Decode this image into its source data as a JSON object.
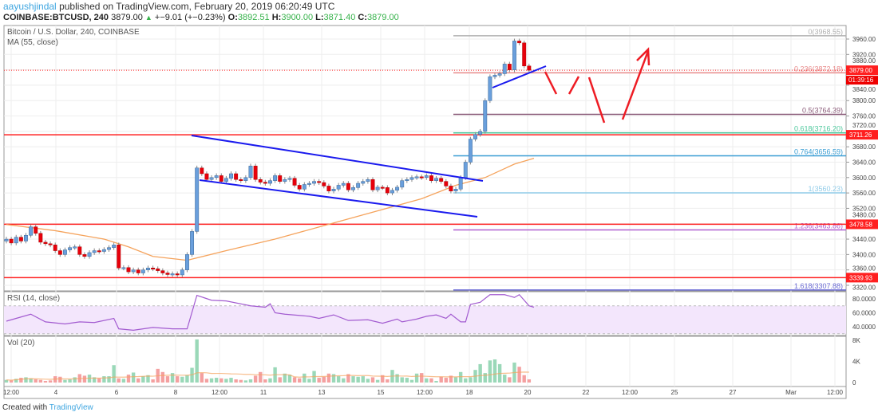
{
  "header": {
    "author": "aayushjindal",
    "published": "published on TradingView.com, February 20, 2019 06:20:49 UTC",
    "symbol": "COINBASE:BTCUSD, 240",
    "last": "3879.00",
    "change": "+−9.01 (+−0.23%)",
    "o_label": "O:",
    "o": "3892.51",
    "h_label": "H:",
    "h": "3900.00",
    "l_label": "L:",
    "l": "3871.40",
    "c_label": "C:",
    "c": "3879.00"
  },
  "legend": {
    "title": "Bitcoin / U.S. Dollar, 240, COINBASE",
    "ma": "MA (55, close)",
    "rsi": "RSI (14, close)",
    "vol": "Vol (20)"
  },
  "footer": {
    "created": "Created with",
    "brand": "TradingView"
  },
  "colors": {
    "up": "#6a9fdc",
    "down": "#e8000b",
    "ma": "#f5a35c",
    "rsi": "#a25bd0",
    "rsi_band": "#f3e6fc",
    "vol_up": "#9ad8b8",
    "vol_down": "#f4a0a0",
    "support": "#ff2020",
    "channel": "#1a1aee",
    "arrow": "#ee1c24"
  },
  "chart_data": {
    "type": "candlestick",
    "price_ticks": [
      "3960.00",
      "3920.00",
      "3880.00",
      "3840.00",
      "3800.00",
      "3760.00",
      "3720.00",
      "3680.00",
      "3640.00",
      "3600.00",
      "3560.00",
      "3520.00",
      "3480.00",
      "3440.00",
      "3400.00",
      "3360.00",
      "3320.00"
    ],
    "price_ylim": [
      3300,
      3985
    ],
    "time_ticks": [
      "12:00",
      "4",
      "6",
      "8",
      "12:00",
      "11",
      "13",
      "15",
      "12:00",
      "18",
      "20",
      "22",
      "12:00",
      "25",
      "27",
      "Mar",
      "12:00"
    ],
    "closes": [
      3440,
      3430,
      3445,
      3435,
      3450,
      3472,
      3455,
      3432,
      3428,
      3425,
      3410,
      3400,
      3412,
      3418,
      3420,
      3400,
      3395,
      3405,
      3410,
      3408,
      3413,
      3418,
      3425,
      3365,
      3366,
      3355,
      3360,
      3352,
      3360,
      3365,
      3363,
      3358,
      3352,
      3348,
      3350,
      3347,
      3360,
      3400,
      3460,
      3625,
      3610,
      3595,
      3600,
      3605,
      3590,
      3598,
      3610,
      3595,
      3592,
      3600,
      3630,
      3595,
      3588,
      3585,
      3592,
      3605,
      3590,
      3595,
      3598,
      3580,
      3570,
      3582,
      3585,
      3590,
      3587,
      3578,
      3565,
      3570,
      3580,
      3585,
      3568,
      3574,
      3585,
      3590,
      3595,
      3568,
      3575,
      3574,
      3560,
      3567,
      3575,
      3592,
      3595,
      3600,
      3602,
      3600,
      3605,
      3592,
      3598,
      3590,
      3578,
      3565,
      3570,
      3600,
      3640,
      3700,
      3712,
      3720,
      3800,
      3862,
      3866,
      3870,
      3895,
      3880,
      3955,
      3950,
      3890,
      3879
    ],
    "first_open": 3435,
    "ma55": [
      [
        0,
        3478
      ],
      [
        10,
        3462
      ],
      [
        20,
        3440
      ],
      [
        25,
        3420
      ],
      [
        30,
        3395
      ],
      [
        37,
        3385
      ],
      [
        45,
        3410
      ],
      [
        55,
        3440
      ],
      [
        65,
        3475
      ],
      [
        75,
        3510
      ],
      [
        85,
        3545
      ],
      [
        92,
        3580
      ],
      [
        98,
        3600
      ],
      [
        104,
        3635
      ],
      [
        108,
        3650
      ]
    ],
    "current_price": {
      "value": "3879.00",
      "countdown": "01:39:16"
    },
    "horizontal_levels": [
      "3711.26",
      "3478.58",
      "3339.93"
    ],
    "fib_levels": [
      {
        "label": "0(3968.55)",
        "value": 3968.55,
        "color": "#b0b0b0"
      },
      {
        "label": "0.236(3872.18)",
        "value": 3872.18,
        "color": "#e88a8a"
      },
      {
        "label": "0.5(3764.39)",
        "value": 3764.39,
        "color": "#8a5a78"
      },
      {
        "label": "0.618(3716.20)",
        "value": 3716.2,
        "color": "#4cc89c"
      },
      {
        "label": "0.764(3656.59)",
        "value": 3656.59,
        "color": "#3a9ed4"
      },
      {
        "label": "1(3560.23)",
        "value": 3560.23,
        "color": "#8fcbe8"
      },
      {
        "label": "1.236(3463.86)",
        "value": 3463.86,
        "color": "#b060d0"
      },
      {
        "label": "1.618(3307.88)",
        "value": 3307.88,
        "color": "#6a6ad4"
      }
    ],
    "rsi": {
      "ticks": [
        "80.0000",
        "60.0000",
        "40.0000"
      ],
      "band": [
        30,
        70
      ],
      "points": [
        [
          0,
          48
        ],
        [
          2,
          52
        ],
        [
          5,
          58
        ],
        [
          8,
          47
        ],
        [
          12,
          44
        ],
        [
          15,
          47
        ],
        [
          18,
          46
        ],
        [
          22,
          52
        ],
        [
          23,
          37
        ],
        [
          26,
          35
        ],
        [
          30,
          39
        ],
        [
          34,
          37
        ],
        [
          37,
          37
        ],
        [
          39,
          85
        ],
        [
          42,
          78
        ],
        [
          45,
          77
        ],
        [
          50,
          70
        ],
        [
          53,
          68
        ],
        [
          54,
          73
        ],
        [
          55,
          60
        ],
        [
          57,
          58
        ],
        [
          62,
          55
        ],
        [
          64,
          52
        ],
        [
          67,
          57
        ],
        [
          70,
          49
        ],
        [
          74,
          50
        ],
        [
          77,
          45
        ],
        [
          80,
          51
        ],
        [
          81,
          47
        ],
        [
          84,
          51
        ],
        [
          86,
          55
        ],
        [
          88,
          57
        ],
        [
          90,
          52
        ],
        [
          91,
          58
        ],
        [
          93,
          47
        ],
        [
          94,
          47
        ],
        [
          95,
          72
        ],
        [
          97,
          75
        ],
        [
          99,
          86
        ],
        [
          102,
          86
        ],
        [
          104,
          82
        ],
        [
          105,
          86
        ],
        [
          107,
          70
        ],
        [
          108,
          68
        ]
      ]
    },
    "volume": {
      "ticks": [
        "8K",
        "4K",
        "0"
      ],
      "unit": "K",
      "values": [
        0.5,
        0.4,
        0.7,
        0.9,
        1.0,
        0.8,
        0.6,
        0.5,
        0.3,
        0.4,
        1.2,
        1.1,
        0.5,
        0.6,
        1.0,
        1.6,
        1.3,
        1.5,
        1.0,
        0.8,
        1.2,
        1.2,
        3.3,
        0.8,
        0.7,
        1.5,
        1.9,
        0.8,
        1.2,
        1.4,
        0.6,
        2.6,
        2.0,
        1.2,
        1.8,
        1.2,
        1.1,
        1.4,
        2.8,
        8.2,
        1.8,
        0.7,
        0.8,
        0.9,
        0.8,
        0.7,
        0.9,
        0.6,
        0.5,
        0.4,
        0.6,
        1.3,
        2.0,
        0.6,
        0.8,
        2.9,
        1.0,
        1.7,
        1.5,
        1.0,
        0.8,
        1.7,
        0.7,
        2.2,
        0.9,
        1.1,
        1.7,
        1.6,
        1.2,
        0.8,
        1.6,
        1.2,
        1.1,
        1.2,
        0.7,
        1.0,
        0.5,
        1.4,
        0.6,
        2.4,
        1.6,
        1.0,
        0.9,
        0.5,
        1.7,
        1.8,
        0.8,
        0.8,
        0.3,
        1.1,
        0.9,
        1.3,
        1.0,
        2.0,
        0.8,
        1.0,
        2.4,
        3.5,
        1.8,
        4.2,
        4.4,
        3.5,
        1.5,
        1.0,
        3.8,
        3.0,
        1.4,
        0.6
      ]
    }
  }
}
